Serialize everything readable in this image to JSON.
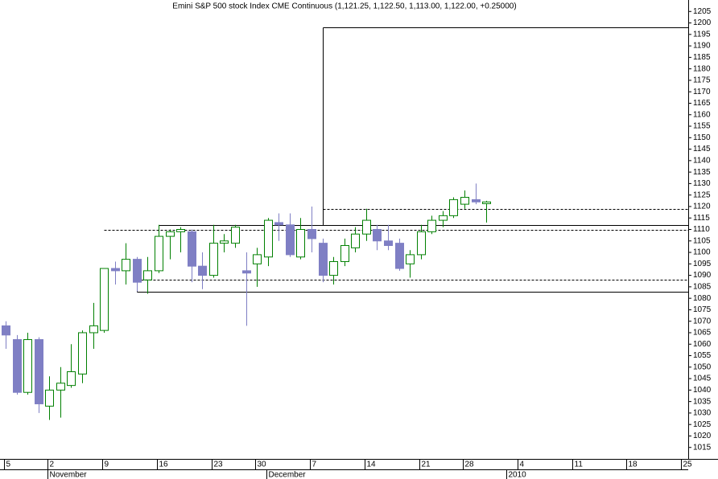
{
  "chart_data": {
    "type": "candlestick",
    "title": "Emini S&P 500 stock Index CME Continuous (1,121.25, 1,122.50, 1,113.00, 1,122.00, +0.25000)",
    "categories": [
      "5",
      null,
      null,
      null,
      "2",
      null,
      null,
      null,
      null,
      "9",
      null,
      null,
      null,
      null,
      "16",
      null,
      null,
      null,
      null,
      "23",
      null,
      null,
      null,
      "30",
      null,
      null,
      null,
      null,
      "7",
      null,
      null,
      null,
      null,
      "14",
      null,
      null,
      null,
      null,
      "21",
      null,
      null,
      null,
      "28",
      null,
      null,
      null,
      null,
      "4",
      null,
      null,
      null,
      null,
      "11",
      null,
      null,
      null,
      null,
      "18",
      null,
      null,
      null,
      null,
      "25"
    ],
    "months": [
      {
        "label": "November",
        "at": 4
      },
      {
        "label": "December",
        "at": 24
      },
      {
        "label": "2010",
        "at": 46
      }
    ],
    "open": [
      1068,
      1062,
      1039,
      1062,
      1033,
      1040,
      1042,
      1047,
      1065,
      1066,
      1093,
      1092,
      1097,
      1088,
      1092,
      1107,
      1109,
      1109,
      1094,
      1090,
      1104,
      1104,
      1092,
      1095,
      1098,
      1113,
      1112,
      1098,
      1110,
      1104,
      1090,
      1096,
      1102,
      1108,
      1110,
      1105,
      1104,
      1095,
      1099,
      1109,
      1114,
      1116,
      1121,
      1123,
      1121.25,
      null,
      null,
      null,
      null,
      null,
      null,
      null,
      null,
      null,
      null,
      null,
      null,
      null,
      null,
      null,
      null,
      null,
      null
    ],
    "high": [
      1070,
      1064,
      1065,
      1063,
      1046,
      1050,
      1060,
      1066,
      1078,
      1093,
      1096,
      1104,
      1098,
      1098,
      1112,
      1110,
      1111,
      1110,
      1100,
      1112,
      1108,
      1112,
      1100,
      1102,
      1115,
      1117,
      1117,
      1115,
      1120,
      1106,
      1098,
      1106,
      1111,
      1119,
      1112,
      1112,
      1106,
      1101,
      1112,
      1116,
      1118,
      1124,
      1127,
      1130,
      1122.5,
      null,
      null,
      null,
      null,
      null,
      null,
      null,
      null,
      null,
      null,
      null,
      null,
      null,
      null,
      null,
      null,
      null,
      null
    ],
    "low": [
      1058,
      1038,
      1038,
      1030,
      1027,
      1028,
      1041,
      1043,
      1058,
      1065,
      1086,
      1086,
      1083,
      1082,
      1091,
      1097,
      1100,
      1087,
      1084,
      1089,
      1100,
      1102,
      1068,
      1085,
      1094,
      1105,
      1098,
      1097,
      1100,
      1087,
      1086,
      1094,
      1100,
      1105,
      1101,
      1101,
      1092,
      1089,
      1097,
      1108,
      1111,
      1115,
      1119,
      1121,
      1113,
      null,
      null,
      null,
      null,
      null,
      null,
      null,
      null,
      null,
      null,
      null,
      null,
      null,
      null,
      null,
      null,
      null,
      null
    ],
    "close": [
      1064,
      1039,
      1062,
      1034,
      1040,
      1043,
      1048,
      1065,
      1068,
      1093,
      1092,
      1097,
      1087,
      1092,
      1107,
      1109,
      1110,
      1094,
      1090,
      1104,
      1105,
      1111,
      1091,
      1099,
      1114,
      1112,
      1099,
      1110,
      1106,
      1090,
      1096,
      1103,
      1108,
      1114,
      1105,
      1103,
      1093,
      1099,
      1109,
      1114,
      1116,
      1123,
      1124,
      1122,
      1122,
      null,
      null,
      null,
      null,
      null,
      null,
      null,
      null,
      null,
      null,
      null,
      null,
      null,
      null,
      null,
      null,
      null,
      null
    ],
    "up_color": "#008000",
    "down_color": "#7f7fc4",
    "lines": [
      {
        "value": 1198,
        "from": 29,
        "to": 1112,
        "dashed": false
      },
      {
        "value": 1119,
        "from": 29,
        "dashed": true
      },
      {
        "value": 1112,
        "from": 14,
        "to": 1110,
        "dashed": false
      },
      {
        "value": 1110,
        "from": 9,
        "dashed": true
      },
      {
        "value": 1088,
        "from": 12,
        "dashed": true
      },
      {
        "value": 1083,
        "from": 12,
        "to": 1088,
        "dashed": false
      }
    ],
    "ylim": [
      1010,
      1210
    ],
    "yticks": [
      1015,
      1020,
      1025,
      1030,
      1035,
      1040,
      1045,
      1050,
      1055,
      1060,
      1065,
      1070,
      1075,
      1080,
      1085,
      1090,
      1095,
      1100,
      1105,
      1110,
      1115,
      1120,
      1125,
      1130,
      1135,
      1140,
      1145,
      1150,
      1155,
      1160,
      1165,
      1170,
      1175,
      1180,
      1185,
      1190,
      1195,
      1200,
      1205
    ]
  }
}
